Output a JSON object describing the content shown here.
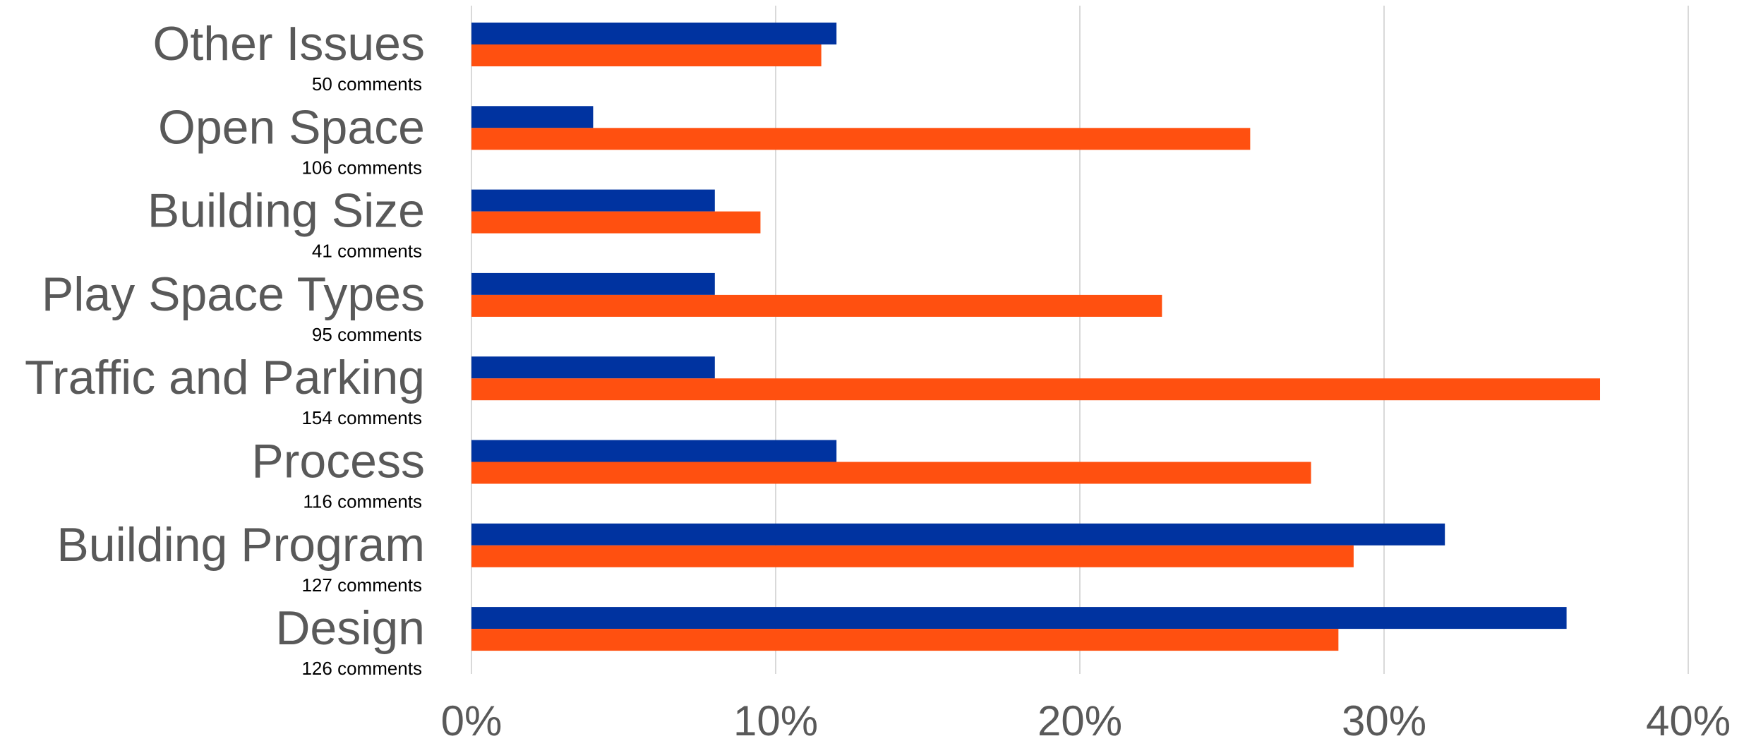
{
  "chart_data": {
    "type": "bar",
    "orientation": "horizontal",
    "categories": [
      "Other Issues",
      "Open Space",
      "Building Size",
      "Play Space Types",
      "Traffic and Parking",
      "Process",
      "Building Program",
      "Design"
    ],
    "category_subtitles": [
      "50 comments",
      "106 comments",
      "41 comments",
      "95 comments",
      "154 comments",
      "116 comments",
      "127 comments",
      "126 comments"
    ],
    "series": [
      {
        "color": "#0033a0",
        "values": [
          12,
          4,
          8,
          8,
          8,
          12,
          32,
          36
        ]
      },
      {
        "color": "#ff5010",
        "values": [
          11.5,
          25.6,
          9.5,
          22.7,
          37.1,
          27.6,
          29,
          28.5
        ]
      }
    ],
    "xlim": [
      0,
      40
    ],
    "x_ticks": [
      "0%",
      "10%",
      "20%",
      "30%",
      "40%"
    ],
    "grid": true,
    "legend": "none",
    "title": "",
    "xlabel": "",
    "ylabel": ""
  }
}
